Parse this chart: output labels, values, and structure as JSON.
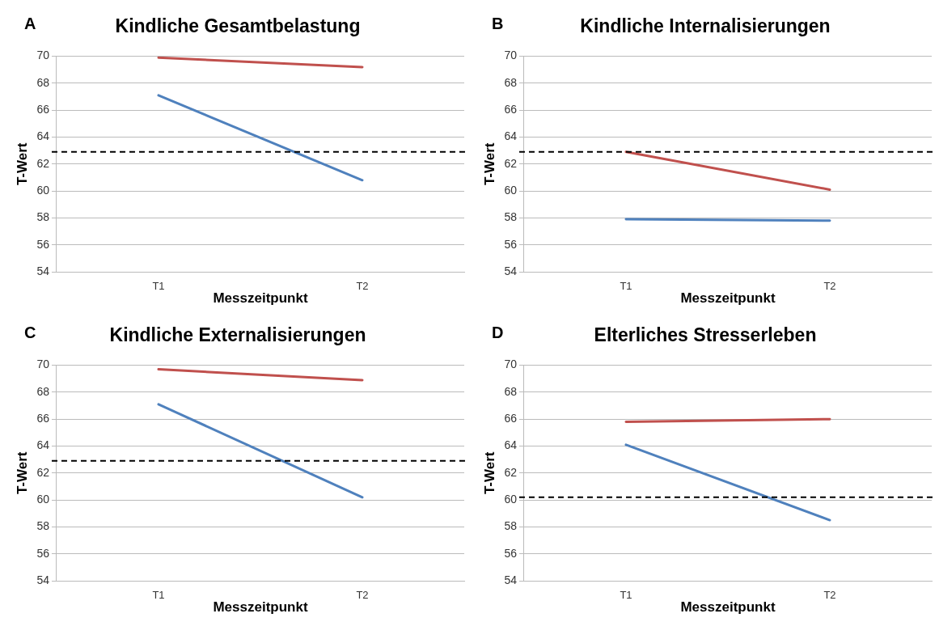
{
  "chart_data": [
    {
      "type": "line",
      "title": "Kindliche Gesamtbelastung",
      "annotations": [
        "A"
      ],
      "xlabel": "Messzeitpunkt",
      "ylabel": "T-Wert",
      "categories": [
        "T1",
        "T2"
      ],
      "series": [
        {
          "color": "#c0504d",
          "values": [
            69.9,
            69.2
          ]
        },
        {
          "color": "#4f81bd",
          "values": [
            67.1,
            60.8
          ]
        }
      ],
      "ylim": [
        54,
        70
      ],
      "yticks": [
        54,
        56,
        58,
        60,
        62,
        64,
        66,
        68,
        70
      ],
      "grid": "y",
      "marker": "none",
      "line_style": "solid",
      "ref_lines": [
        {
          "axis": "y",
          "value": 62.9,
          "color": "#000000",
          "line_style": "dashed"
        }
      ]
    },
    {
      "type": "line",
      "title": "Kindliche Internalisierungen",
      "annotations": [
        "B"
      ],
      "xlabel": "Messzeitpunkt",
      "ylabel": "T-Wert",
      "categories": [
        "T1",
        "T2"
      ],
      "series": [
        {
          "color": "#c0504d",
          "values": [
            62.9,
            60.1
          ]
        },
        {
          "color": "#4f81bd",
          "values": [
            57.9,
            57.8
          ]
        }
      ],
      "ylim": [
        54,
        70
      ],
      "yticks": [
        54,
        56,
        58,
        60,
        62,
        64,
        66,
        68,
        70
      ],
      "grid": "y",
      "marker": "none",
      "line_style": "solid",
      "ref_lines": [
        {
          "axis": "y",
          "value": 62.9,
          "color": "#000000",
          "line_style": "dashed"
        }
      ]
    },
    {
      "type": "line",
      "title": "Kindliche Externalisierungen",
      "annotations": [
        "C"
      ],
      "xlabel": "Messzeitpunkt",
      "ylabel": "T-Wert",
      "categories": [
        "T1",
        "T2"
      ],
      "series": [
        {
          "color": "#c0504d",
          "values": [
            69.7,
            68.9
          ]
        },
        {
          "color": "#4f81bd",
          "values": [
            67.1,
            60.2
          ]
        }
      ],
      "ylim": [
        54,
        70
      ],
      "yticks": [
        54,
        56,
        58,
        60,
        62,
        64,
        66,
        68,
        70
      ],
      "grid": "y",
      "marker": "none",
      "line_style": "solid",
      "ref_lines": [
        {
          "axis": "y",
          "value": 62.9,
          "color": "#000000",
          "line_style": "dashed"
        }
      ]
    },
    {
      "type": "line",
      "title": "Elterliches Stresserleben",
      "annotations": [
        "D"
      ],
      "xlabel": "Messzeitpunkt",
      "ylabel": "T-Wert",
      "categories": [
        "T1",
        "T2"
      ],
      "series": [
        {
          "color": "#c0504d",
          "values": [
            65.8,
            66.0
          ]
        },
        {
          "color": "#4f81bd",
          "values": [
            64.1,
            58.5
          ]
        }
      ],
      "ylim": [
        54,
        70
      ],
      "yticks": [
        54,
        56,
        58,
        60,
        62,
        64,
        66,
        68,
        70
      ],
      "grid": "y",
      "marker": "none",
      "line_style": "solid",
      "ref_lines": [
        {
          "axis": "y",
          "value": 60.2,
          "color": "#000000",
          "line_style": "dashed"
        }
      ]
    }
  ]
}
